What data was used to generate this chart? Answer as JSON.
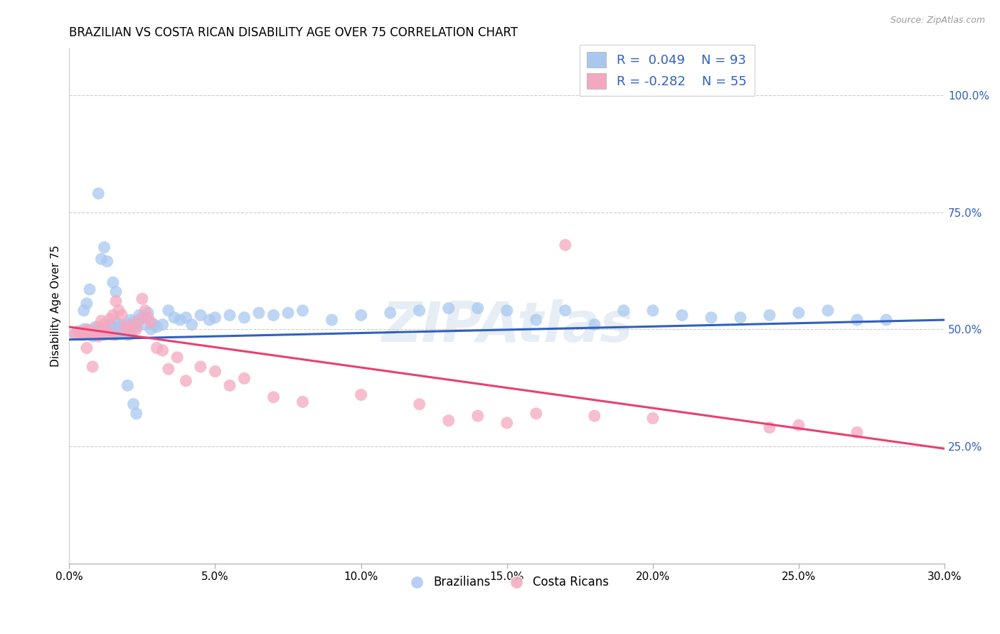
{
  "title": "BRAZILIAN VS COSTA RICAN DISABILITY AGE OVER 75 CORRELATION CHART",
  "source": "Source: ZipAtlas.com",
  "ylabel": "Disability Age Over 75",
  "ytick_labels": [
    "100.0%",
    "75.0%",
    "50.0%",
    "25.0%"
  ],
  "ytick_values": [
    1.0,
    0.75,
    0.5,
    0.25
  ],
  "xtick_values": [
    0.0,
    0.05,
    0.1,
    0.15,
    0.2,
    0.25,
    0.3
  ],
  "xtick_labels": [
    "0.0%",
    "5.0%",
    "10.0%",
    "15.0%",
    "20.0%",
    "25.0%",
    "30.0%"
  ],
  "xlim": [
    0.0,
    0.3
  ],
  "ylim": [
    0.0,
    1.1
  ],
  "blue_color": "#A8C8F0",
  "pink_color": "#F4A8C0",
  "blue_line_color": "#3060C0",
  "pink_line_color": "#E84070",
  "tick_color": "#3060C0",
  "watermark": "ZIPAtlas",
  "blue_R": 0.049,
  "blue_N": 93,
  "pink_R": -0.282,
  "pink_N": 55,
  "grid_color": "#CCCCCC",
  "background_color": "#FFFFFF",
  "title_fontsize": 12,
  "axis_label_fontsize": 11,
  "tick_fontsize": 11,
  "legend_fontsize": 13,
  "blue_scatter_x": [
    0.002,
    0.003,
    0.004,
    0.005,
    0.005,
    0.006,
    0.006,
    0.007,
    0.007,
    0.008,
    0.008,
    0.009,
    0.009,
    0.01,
    0.01,
    0.01,
    0.011,
    0.011,
    0.012,
    0.012,
    0.013,
    0.013,
    0.014,
    0.014,
    0.015,
    0.015,
    0.016,
    0.016,
    0.017,
    0.017,
    0.018,
    0.018,
    0.019,
    0.019,
    0.02,
    0.02,
    0.021,
    0.022,
    0.023,
    0.024,
    0.025,
    0.026,
    0.027,
    0.028,
    0.029,
    0.03,
    0.032,
    0.034,
    0.036,
    0.038,
    0.04,
    0.042,
    0.045,
    0.048,
    0.05,
    0.055,
    0.06,
    0.065,
    0.07,
    0.075,
    0.08,
    0.09,
    0.1,
    0.11,
    0.12,
    0.13,
    0.14,
    0.15,
    0.16,
    0.17,
    0.18,
    0.19,
    0.2,
    0.21,
    0.22,
    0.23,
    0.24,
    0.25,
    0.26,
    0.27,
    0.01,
    0.011,
    0.012,
    0.013,
    0.005,
    0.006,
    0.007,
    0.015,
    0.016,
    0.02,
    0.022,
    0.023,
    0.28
  ],
  "blue_scatter_y": [
    0.49,
    0.495,
    0.49,
    0.488,
    0.5,
    0.495,
    0.492,
    0.498,
    0.493,
    0.485,
    0.496,
    0.49,
    0.505,
    0.492,
    0.498,
    0.488,
    0.495,
    0.5,
    0.488,
    0.495,
    0.5,
    0.505,
    0.49,
    0.51,
    0.495,
    0.505,
    0.488,
    0.515,
    0.495,
    0.505,
    0.51,
    0.49,
    0.505,
    0.495,
    0.51,
    0.488,
    0.52,
    0.515,
    0.505,
    0.53,
    0.525,
    0.51,
    0.535,
    0.5,
    0.51,
    0.505,
    0.51,
    0.54,
    0.525,
    0.52,
    0.525,
    0.51,
    0.53,
    0.52,
    0.525,
    0.53,
    0.525,
    0.535,
    0.53,
    0.535,
    0.54,
    0.52,
    0.53,
    0.535,
    0.54,
    0.545,
    0.545,
    0.54,
    0.52,
    0.54,
    0.51,
    0.54,
    0.54,
    0.53,
    0.525,
    0.525,
    0.53,
    0.535,
    0.54,
    0.52,
    0.79,
    0.65,
    0.675,
    0.645,
    0.54,
    0.555,
    0.585,
    0.6,
    0.58,
    0.38,
    0.34,
    0.32,
    0.52
  ],
  "pink_scatter_x": [
    0.002,
    0.003,
    0.004,
    0.005,
    0.006,
    0.007,
    0.008,
    0.009,
    0.01,
    0.01,
    0.011,
    0.011,
    0.012,
    0.013,
    0.014,
    0.015,
    0.015,
    0.016,
    0.017,
    0.018,
    0.019,
    0.02,
    0.021,
    0.022,
    0.023,
    0.024,
    0.025,
    0.026,
    0.027,
    0.028,
    0.03,
    0.032,
    0.034,
    0.037,
    0.04,
    0.045,
    0.05,
    0.055,
    0.06,
    0.07,
    0.08,
    0.1,
    0.12,
    0.14,
    0.15,
    0.16,
    0.18,
    0.2,
    0.24,
    0.25,
    0.27,
    0.006,
    0.008,
    0.13,
    0.17
  ],
  "pink_scatter_y": [
    0.49,
    0.495,
    0.488,
    0.492,
    0.5,
    0.495,
    0.49,
    0.488,
    0.485,
    0.505,
    0.492,
    0.518,
    0.51,
    0.495,
    0.522,
    0.53,
    0.488,
    0.56,
    0.54,
    0.53,
    0.505,
    0.505,
    0.49,
    0.51,
    0.5,
    0.52,
    0.565,
    0.54,
    0.525,
    0.515,
    0.46,
    0.455,
    0.415,
    0.44,
    0.39,
    0.42,
    0.41,
    0.38,
    0.395,
    0.355,
    0.345,
    0.36,
    0.34,
    0.315,
    0.3,
    0.32,
    0.315,
    0.31,
    0.29,
    0.295,
    0.28,
    0.46,
    0.42,
    0.305,
    0.68
  ]
}
